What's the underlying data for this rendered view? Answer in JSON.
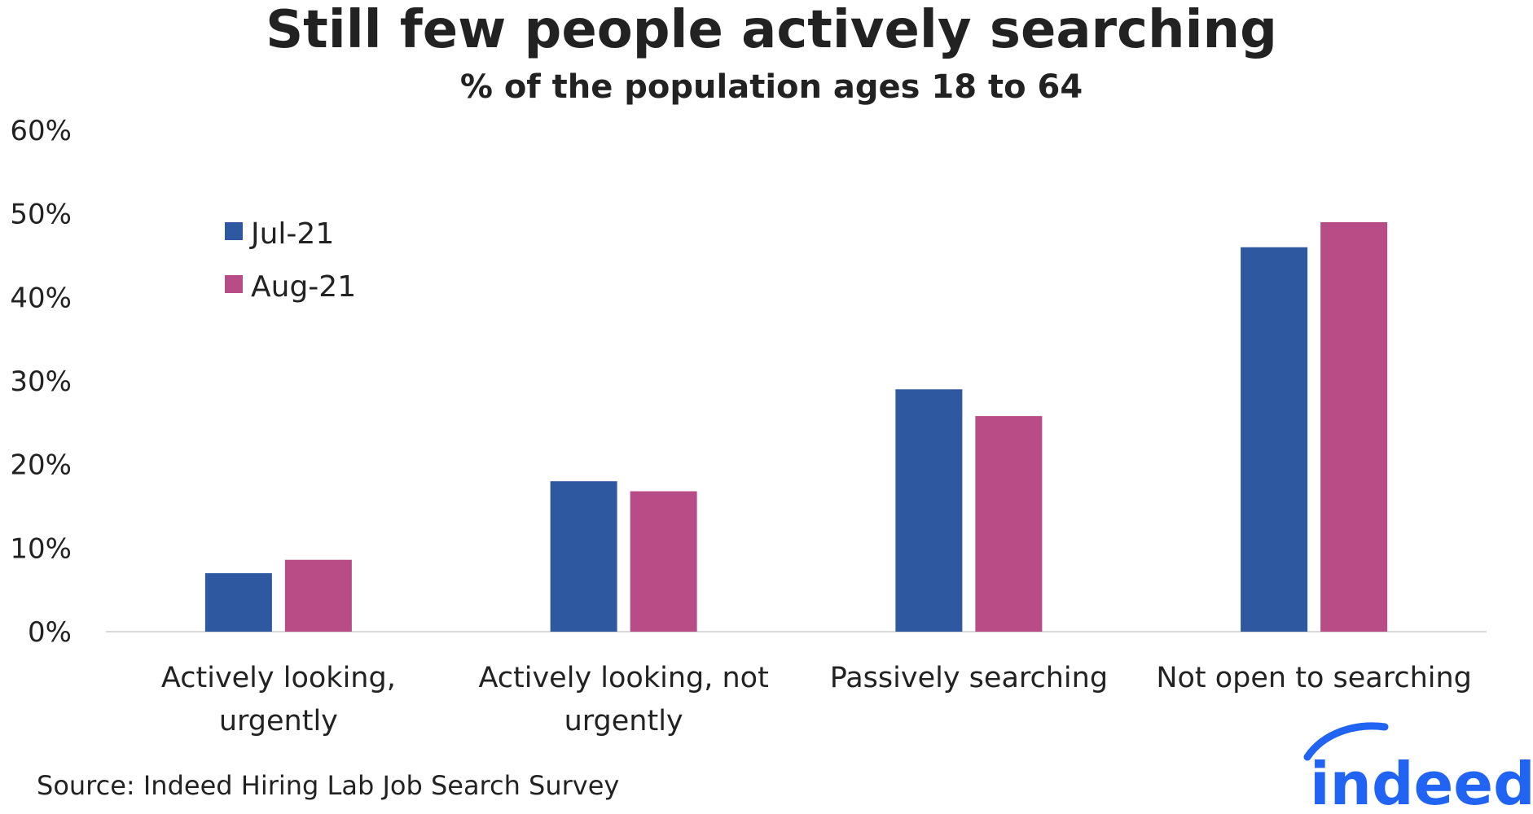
{
  "chart_data": {
    "type": "bar",
    "title": "Still few people actively searching",
    "subtitle": "% of the population ages 18 to 64",
    "categories": [
      [
        "Actively looking,",
        "urgently"
      ],
      [
        "Actively looking, not",
        "urgently"
      ],
      [
        "Passively searching"
      ],
      [
        "Not open to searching"
      ]
    ],
    "series": [
      {
        "name": "Jul-21",
        "color": "#2e58a0",
        "values": [
          7,
          18,
          29,
          46
        ]
      },
      {
        "name": "Aug-21",
        "color": "#b84c86",
        "values": [
          8.6,
          16.8,
          25.8,
          49
        ]
      }
    ],
    "ylim": [
      0,
      60
    ],
    "yticks": [
      0,
      10,
      20,
      30,
      40,
      50,
      60
    ],
    "ytick_labels": [
      "0%",
      "10%",
      "20%",
      "30%",
      "40%",
      "50%",
      "60%"
    ],
    "grid": false,
    "legend_position": "top-left",
    "xlabel": "",
    "ylabel": ""
  },
  "source": "Source: Indeed Hiring Lab Job Search Survey",
  "logo": {
    "text": "indeed",
    "color": "#2164f3"
  }
}
